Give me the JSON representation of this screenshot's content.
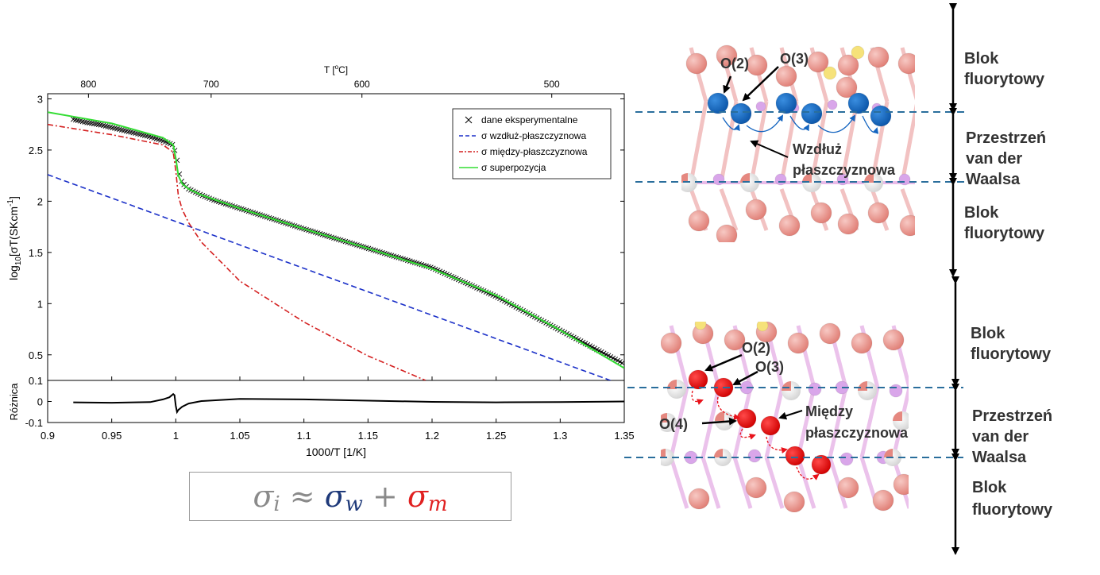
{
  "chart_data": {
    "type": "line",
    "top_axis": {
      "label": "T [°C]",
      "ticks": [
        "800",
        "700",
        "600",
        "500"
      ],
      "tick_values": [
        800,
        700,
        600,
        500
      ]
    },
    "main_plot": {
      "ylabel": "log10[σT(SKcm-1]",
      "ylabel_base": "log",
      "ylabel_sub": "10",
      "ylabel_rest": "[σT(SKcm",
      "ylabel_sup": "-1",
      "ylabel_end": "]",
      "xlim": [
        0.9,
        1.35
      ],
      "ylim": [
        0.25,
        3.05
      ],
      "yticks": [
        "0.5",
        "1",
        "1.5",
        "2",
        "2.5",
        "3"
      ],
      "ytick_values": [
        0.5,
        1,
        1.5,
        2,
        2.5,
        3
      ],
      "legend_position": "top-right",
      "series": [
        {
          "name": "dane eksperymentalne",
          "style": "markers-x",
          "color": "#000000",
          "x": [
            0.92,
            0.93,
            0.94,
            0.95,
            0.96,
            0.97,
            0.98,
            0.99,
            0.998,
            1.0,
            1.001,
            1.003,
            1.005,
            1.01,
            1.02,
            1.03,
            1.05,
            1.07,
            1.1,
            1.15,
            1.2,
            1.25,
            1.3,
            1.35
          ],
          "y": [
            2.8,
            2.77,
            2.75,
            2.72,
            2.69,
            2.66,
            2.63,
            2.59,
            2.55,
            2.46,
            2.4,
            2.25,
            2.18,
            2.12,
            2.06,
            2.01,
            1.93,
            1.85,
            1.73,
            1.54,
            1.35,
            1.07,
            0.74,
            0.41
          ]
        },
        {
          "name": "σ wzdłuż-płaszczyznowa",
          "style": "dashed",
          "color": "#1a2fc8",
          "x": [
            0.9,
            1.35
          ],
          "y": [
            2.26,
            0.2
          ]
        },
        {
          "name": "σ między-płaszczyznowa",
          "style": "dashdot",
          "color": "#d42020",
          "x": [
            0.9,
            0.95,
            0.99,
            0.998,
            1.0,
            1.002,
            1.005,
            1.01,
            1.02,
            1.05,
            1.1,
            1.15,
            1.195
          ],
          "y": [
            2.75,
            2.65,
            2.55,
            2.48,
            2.3,
            2.05,
            1.92,
            1.79,
            1.6,
            1.22,
            0.82,
            0.49,
            0.25
          ]
        },
        {
          "name": "σ superpozycja",
          "style": "solid",
          "color": "#33dd33",
          "x": [
            0.9,
            0.95,
            0.99,
            0.998,
            1.0,
            1.002,
            1.005,
            1.01,
            1.02,
            1.05,
            1.1,
            1.15,
            1.2,
            1.25,
            1.3,
            1.35
          ],
          "y": [
            2.87,
            2.76,
            2.62,
            2.55,
            2.42,
            2.25,
            2.17,
            2.12,
            2.06,
            1.93,
            1.73,
            1.54,
            1.34,
            1.08,
            0.74,
            0.37
          ]
        }
      ]
    },
    "residual_plot": {
      "ylabel": "Różnica",
      "ylim": [
        -0.1,
        0.1
      ],
      "yticks": [
        "0.1",
        "0",
        "-0.1"
      ],
      "ytick_values": [
        0.1,
        0,
        -0.1
      ],
      "xlim": [
        0.9,
        1.35
      ],
      "xticks": [
        "0.9",
        "0.95",
        "1",
        "1.05",
        "1.1",
        "1.15",
        "1.2",
        "1.25",
        "1.3",
        "1.35"
      ],
      "xtick_values": [
        0.9,
        0.95,
        1.0,
        1.05,
        1.1,
        1.15,
        1.2,
        1.25,
        1.3,
        1.35
      ],
      "xlabel": "1000/T [1/K]",
      "series": [
        {
          "name": "",
          "color": "#000000",
          "x": [
            0.92,
            0.95,
            0.98,
            0.99,
            0.995,
            0.998,
            0.999,
            1.0,
            1.001,
            1.002,
            1.003,
            1.005,
            1.01,
            1.02,
            1.05,
            1.1,
            1.2,
            1.25,
            1.3,
            1.35
          ],
          "y": [
            -0.004,
            -0.006,
            -0.003,
            0.01,
            0.02,
            0.035,
            0.03,
            -0.02,
            -0.05,
            -0.04,
            -0.035,
            -0.025,
            -0.01,
            0.002,
            0.012,
            0.01,
            -0.002,
            -0.004,
            -0.003,
            0.0
          ]
        }
      ]
    }
  },
  "formula": {
    "sigma_i": "σ",
    "sub_i": "i",
    "approx": " ≈ ",
    "sigma_w": "σ",
    "sub_w": "w",
    "plus": " + ",
    "sigma_m": "σ",
    "sub_m": "m"
  },
  "structures": {
    "top": {
      "labels": {
        "o2": "O(2)",
        "o3": "O(3)",
        "path": "Wzdłuż\npłaszczyznowa"
      },
      "path_lines": [
        "Wzdłuż",
        "płaszczyznowa"
      ],
      "path_color": "#1565c0"
    },
    "bottom": {
      "labels": {
        "o2": "O(2)",
        "o3": "O(3)",
        "o4": "O(4)"
      },
      "path_lines": [
        "Między",
        "płaszczyznowa"
      ],
      "path_color": "#e8121a"
    },
    "region_labels_top": [
      [
        "Blok",
        "fluorytowy"
      ],
      [
        "Przestrzeń",
        "van der",
        "Waalsa"
      ],
      [
        "Blok",
        "fluorytowy"
      ]
    ],
    "region_labels_bottom": [
      [
        "Blok",
        "fluorytowy"
      ],
      [
        "Przestrzeń",
        "van der",
        "Waalsa"
      ],
      [
        "Blok",
        "fluorytowy"
      ]
    ]
  }
}
